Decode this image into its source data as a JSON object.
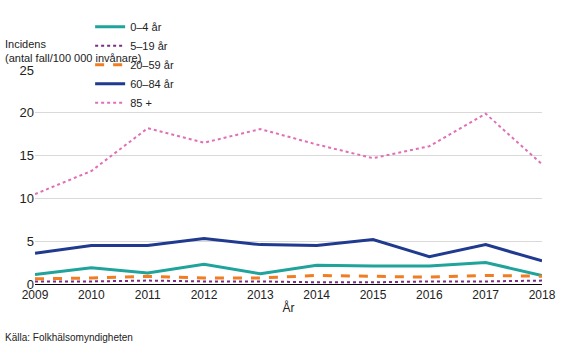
{
  "chart_data": {
    "type": "line",
    "ylabel": "Incidens (antal fall/100 000 invånare)",
    "xlabel": "År",
    "source": "Källa: Folkhälsomyndigheten",
    "x": [
      2009,
      2010,
      2011,
      2012,
      2013,
      2014,
      2015,
      2016,
      2017,
      2018
    ],
    "xlim": [
      2009,
      2018
    ],
    "xticks": [
      2009,
      2010,
      2011,
      2012,
      2013,
      2014,
      2015,
      2016,
      2017,
      2018
    ],
    "ylim": [
      0,
      25
    ],
    "yticks": [
      0,
      5,
      10,
      15,
      20,
      25
    ],
    "grid": true,
    "legend": "top",
    "series": [
      {
        "name": "0–4 år",
        "color": "#1fa39b",
        "line_style": "solid",
        "values": [
          1.1,
          1.9,
          1.3,
          2.3,
          1.2,
          2.2,
          2.1,
          2.1,
          2.5,
          1.0
        ]
      },
      {
        "name": "5–19 år",
        "color": "#7b2c84",
        "line_style": "dot",
        "values": [
          0.3,
          0.3,
          0.4,
          0.3,
          0.3,
          0.2,
          0.2,
          0.3,
          0.3,
          0.4
        ]
      },
      {
        "name": "20–59 år",
        "color": "#f07d22",
        "line_style": "dash",
        "values": [
          0.6,
          0.7,
          0.9,
          0.7,
          0.7,
          1.0,
          0.9,
          0.8,
          1.0,
          0.9
        ]
      },
      {
        "name": "60–84 år",
        "color": "#1f3a8f",
        "line_style": "solid",
        "values": [
          3.6,
          4.5,
          4.5,
          5.3,
          4.6,
          4.5,
          5.2,
          3.2,
          4.6,
          2.7
        ]
      },
      {
        "name": "85 +",
        "color": "#e06fb8",
        "line_style": "dot",
        "values": [
          10.5,
          13.2,
          18.2,
          16.5,
          18.1,
          16.3,
          14.7,
          16.1,
          19.9,
          14.0
        ]
      }
    ]
  }
}
